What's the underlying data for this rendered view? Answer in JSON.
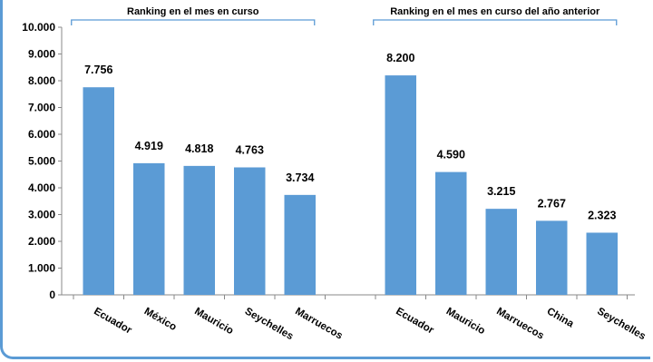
{
  "chart_data": {
    "type": "bar",
    "groups": [
      {
        "label": "Ranking en el mes en curso",
        "categories": [
          "Ecuador",
          "México",
          "Mauricio",
          "Seychelles",
          "Marruecos"
        ],
        "values": [
          7756,
          4919,
          4818,
          4763,
          3734
        ],
        "value_labels": [
          "7.756",
          "4.919",
          "4.818",
          "4.763",
          "3.734"
        ]
      },
      {
        "label": "Ranking en el mes en curso del año anterior",
        "categories": [
          "Ecuador",
          "Mauricio",
          "Marruecos",
          "China",
          "Seychelles"
        ],
        "values": [
          8200,
          4590,
          3215,
          2767,
          2323
        ],
        "value_labels": [
          "8.200",
          "4.590",
          "3.215",
          "2.767",
          "2.323"
        ]
      }
    ],
    "ylim": [
      0,
      10000
    ],
    "yticks": [
      0,
      1000,
      2000,
      3000,
      4000,
      5000,
      6000,
      7000,
      8000,
      9000,
      10000
    ],
    "ytick_labels": [
      "0",
      "1.000",
      "2.000",
      "3.000",
      "4.000",
      "5.000",
      "6.000",
      "7.000",
      "8.000",
      "9.000",
      "10.000"
    ],
    "grid": false,
    "bar_color": "#5b9bd5",
    "bracket_color": "#5b9bd5"
  }
}
